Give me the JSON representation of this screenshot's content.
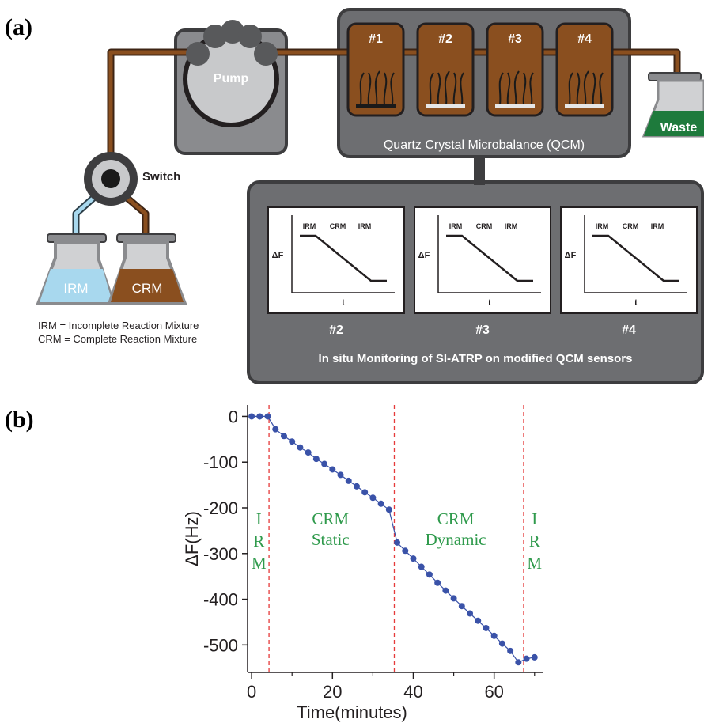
{
  "panel_a": {
    "label": "(a)",
    "pump_label": "Pump",
    "switch_label": "Switch",
    "waste_label": "Waste",
    "qcm_cells": [
      "#1",
      "#2",
      "#3",
      "#4"
    ],
    "qcm_label": "Quartz Crystal Microbalance (QCM)",
    "flask_irm_label": "IRM",
    "flask_crm_label": "CRM",
    "legend": [
      "IRM = Incomplete Reaction Mixture",
      "CRM = Complete Reaction Mixture"
    ],
    "monitor_caption": "In situ Monitoring of SI-ATRP on modified QCM sensors",
    "mini_charts": [
      {
        "id": "#2",
        "phases": [
          "IRM",
          "CRM",
          "IRM"
        ],
        "ylabel": "ΔF",
        "xlabel": "t"
      },
      {
        "id": "#3",
        "phases": [
          "IRM",
          "CRM",
          "IRM"
        ],
        "ylabel": "ΔF",
        "xlabel": "t"
      },
      {
        "id": "#4",
        "phases": [
          "IRM",
          "CRM",
          "IRM"
        ],
        "ylabel": "ΔF",
        "xlabel": "t"
      }
    ],
    "colors": {
      "tube": "#8a4f1f",
      "tube_light": "#a8d8ee",
      "box_gray": "#6d6e71",
      "box_border": "#3d3d3f",
      "pump_body": "#8a8b8e",
      "waste": "#1e7a3c",
      "crm": "#8a4f1f",
      "irm": "#a8d8ee"
    }
  },
  "chart_data": {
    "type": "scatter",
    "panel_label": "(b)",
    "xlabel": "Time(minutes)",
    "ylabel": "ΔF(Hz)",
    "xlim": [
      -1,
      72
    ],
    "ylim": [
      -560,
      25
    ],
    "xticks": [
      0,
      20,
      40,
      60
    ],
    "yticks": [
      0,
      -100,
      -200,
      -300,
      -400,
      -500
    ],
    "minor_xticks": [
      10,
      30,
      50,
      70
    ],
    "grid": false,
    "series": [
      {
        "x": [
          0,
          2,
          4,
          5.9,
          8,
          10,
          12,
          14,
          16,
          18,
          20,
          22,
          24,
          26,
          28,
          30,
          32,
          34,
          36,
          38,
          40,
          42,
          44,
          46,
          48,
          50,
          52,
          54,
          56,
          58,
          60,
          62,
          64,
          66,
          68,
          70
        ],
        "y": [
          0,
          0,
          0,
          -28,
          -43,
          -55,
          -68,
          -79,
          -93,
          -104,
          -116,
          -128,
          -141,
          -153,
          -166,
          -178,
          -191,
          -204,
          -276,
          -294,
          -311,
          -329,
          -346,
          -364,
          -381,
          -398,
          -415,
          -431,
          -447,
          -463,
          -480,
          -497,
          -513,
          -538,
          -530,
          -527
        ],
        "color": "#3a52a8"
      }
    ],
    "phase_boundaries": [
      4.3,
      35.3,
      67.3
    ],
    "boundary_color": "#e63a3a",
    "phase_labels": [
      {
        "text": [
          "I",
          "R",
          "M"
        ],
        "x": 1.8
      },
      {
        "text": [
          "CRM",
          "Static"
        ],
        "x": 19.5
      },
      {
        "text": [
          "CRM",
          "Dynamic"
        ],
        "x": 50.5
      },
      {
        "text": [
          "I",
          "R",
          "M"
        ],
        "x": 70.0
      }
    ],
    "phase_label_color": "#2f9a4c"
  }
}
